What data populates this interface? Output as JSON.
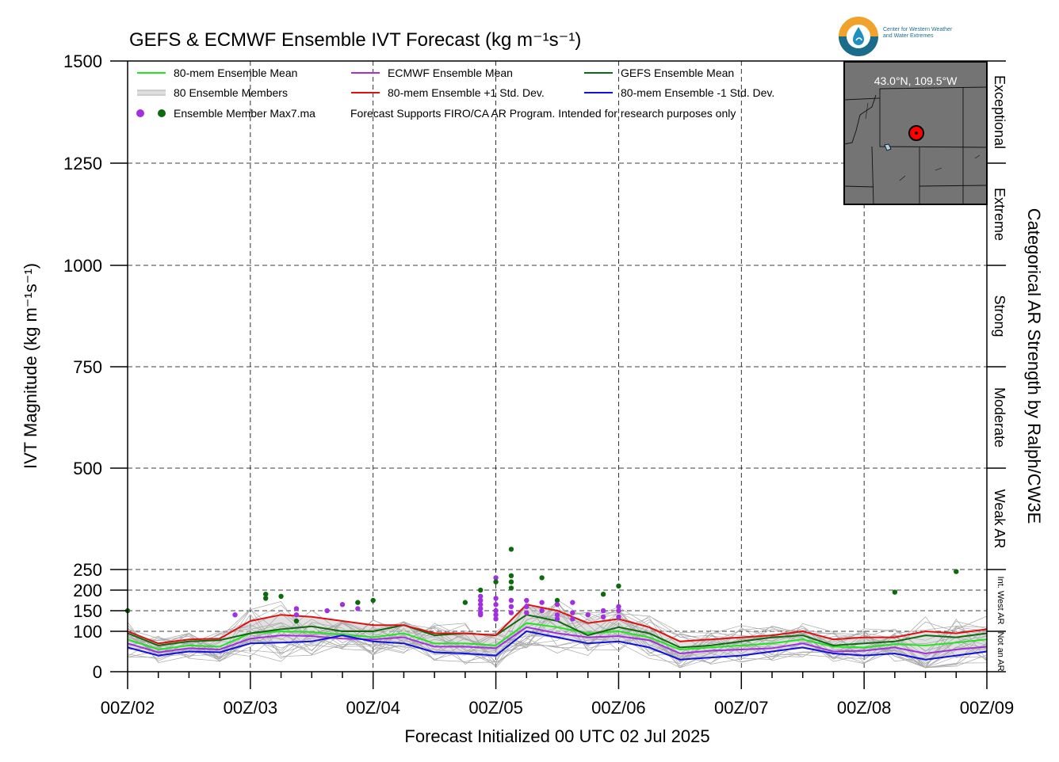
{
  "logo": {
    "line1": "Center for Western Weather",
    "line2": "and Water Extremes"
  },
  "chart_data": {
    "type": "line",
    "title": "GEFS & ECMWF Ensemble IVT Forecast (kg m⁻¹s⁻¹)",
    "ylabel": "IVT Magnitude (kg m⁻¹s⁻¹)",
    "xlabel": "Forecast Initialized 00 UTC 02 Jul 2025",
    "right_label": "Categorical AR Strength by Ralph/CW3E",
    "ylim": [
      0,
      1500
    ],
    "xlim_hours": [
      0,
      168
    ],
    "yticks": [
      0,
      100,
      150,
      200,
      250,
      500,
      750,
      1000,
      1250,
      1500
    ],
    "xtick_labels": [
      "00Z/02",
      "00Z/03",
      "00Z/04",
      "00Z/05",
      "00Z/06",
      "00Z/07",
      "00Z/08",
      "00Z/09"
    ],
    "xtick_hours": [
      0,
      24,
      48,
      72,
      96,
      120,
      144,
      168
    ],
    "grid": true,
    "categories": [
      {
        "label": "Exceptional",
        "from": 1250,
        "to": 1500
      },
      {
        "label": "Extreme",
        "from": 1000,
        "to": 1250
      },
      {
        "label": "Strong",
        "from": 750,
        "to": 1000
      },
      {
        "label": "Moderate",
        "from": 500,
        "to": 750
      },
      {
        "label": "Weak AR",
        "from": 250,
        "to": 500
      },
      {
        "label": "Int. West AR",
        "from": 100,
        "to": 250
      },
      {
        "label": "Not an AR",
        "from": 0,
        "to": 100
      }
    ],
    "legend": [
      {
        "label": "80-mem Ensemble Mean",
        "color": "#22e522",
        "kind": "line"
      },
      {
        "label": "ECMWF Ensemble Mean",
        "color": "#a030e0",
        "kind": "line"
      },
      {
        "label": "GEFS Ensemble Mean",
        "color": "#0d6b0d",
        "kind": "line"
      },
      {
        "label": "80 Ensemble Members",
        "color": "#b0b0b0",
        "kind": "members"
      },
      {
        "label": "80-mem Ensemble +1 Std. Dev.",
        "color": "#e01010",
        "kind": "line"
      },
      {
        "label": "80-mem Ensemble -1 Std. Dev.",
        "color": "#1010e0",
        "kind": "line"
      },
      {
        "label": "Ensemble Member Max7.ma",
        "color": "#a030e0",
        "kind": "dots"
      }
    ],
    "note": "Forecast Supports FIRO/CA AR Program. Intended for research purposes only",
    "inset_label": "43.0°N, 109.5°W",
    "x": [
      0,
      6,
      12,
      18,
      24,
      30,
      36,
      42,
      48,
      54,
      60,
      66,
      72,
      78,
      84,
      90,
      96,
      102,
      108,
      114,
      120,
      126,
      132,
      138,
      144,
      150,
      156,
      162,
      168
    ],
    "series": [
      {
        "name": "80-mem Ensemble Mean",
        "color": "#22e522",
        "values": [
          80,
          55,
          65,
          62,
          95,
          100,
          98,
          92,
          85,
          95,
          70,
          70,
          65,
          120,
          110,
          95,
          100,
          85,
          55,
          60,
          65,
          70,
          80,
          62,
          60,
          68,
          65,
          72,
          80
        ]
      },
      {
        "name": "ECMWF Ensemble Mean",
        "color": "#a030e0",
        "values": [
          70,
          48,
          58,
          55,
          82,
          90,
          88,
          82,
          80,
          85,
          62,
          62,
          58,
          110,
          95,
          85,
          88,
          78,
          45,
          52,
          55,
          58,
          70,
          50,
          52,
          60,
          45,
          55,
          62
        ]
      },
      {
        "name": "GEFS Ensemble Mean",
        "color": "#0d6b0d",
        "values": [
          95,
          65,
          75,
          78,
          95,
          105,
          112,
          100,
          100,
          115,
          90,
          95,
          90,
          140,
          125,
          90,
          110,
          95,
          60,
          65,
          75,
          85,
          90,
          65,
          70,
          75,
          90,
          85,
          95
        ]
      },
      {
        "name": "80-mem Ensemble +1 Std. Dev.",
        "color": "#e01010",
        "values": [
          100,
          70,
          80,
          82,
          125,
          140,
          135,
          125,
          115,
          115,
          95,
          95,
          90,
          165,
          150,
          120,
          130,
          110,
          75,
          80,
          85,
          90,
          100,
          80,
          85,
          85,
          100,
          95,
          105
        ]
      },
      {
        "name": "80-mem Ensemble -1 Std. Dev.",
        "color": "#1010e0",
        "values": [
          60,
          40,
          50,
          48,
          70,
          72,
          75,
          90,
          75,
          70,
          48,
          45,
          40,
          100,
          85,
          70,
          75,
          60,
          30,
          35,
          40,
          50,
          60,
          45,
          40,
          45,
          30,
          40,
          50
        ]
      }
    ],
    "max_points": [
      {
        "x": 0,
        "y": 150,
        "group": "GEFS"
      },
      {
        "x": 21,
        "y": 140,
        "group": "ECMWF"
      },
      {
        "x": 27,
        "y": 190,
        "group": "GEFS"
      },
      {
        "x": 27,
        "y": 180,
        "group": "GEFS"
      },
      {
        "x": 30,
        "y": 185,
        "group": "GEFS"
      },
      {
        "x": 33,
        "y": 155,
        "group": "ECMWF"
      },
      {
        "x": 33,
        "y": 140,
        "group": "ECMWF"
      },
      {
        "x": 33,
        "y": 125,
        "group": "GEFS"
      },
      {
        "x": 39,
        "y": 150,
        "group": "ECMWF"
      },
      {
        "x": 42,
        "y": 165,
        "group": "ECMWF"
      },
      {
        "x": 45,
        "y": 170,
        "group": "GEFS"
      },
      {
        "x": 45,
        "y": 155,
        "group": "ECMWF"
      },
      {
        "x": 48,
        "y": 175,
        "group": "GEFS"
      },
      {
        "x": 66,
        "y": 170,
        "group": "GEFS"
      },
      {
        "x": 69,
        "y": 200,
        "group": "GEFS"
      },
      {
        "x": 69,
        "y": 185,
        "group": "ECMWF"
      },
      {
        "x": 69,
        "y": 175,
        "group": "ECMWF"
      },
      {
        "x": 69,
        "y": 165,
        "group": "ECMWF"
      },
      {
        "x": 69,
        "y": 155,
        "group": "ECMWF"
      },
      {
        "x": 69,
        "y": 145,
        "group": "ECMWF"
      },
      {
        "x": 69,
        "y": 140,
        "group": "ECMWF"
      },
      {
        "x": 72,
        "y": 230,
        "group": "ECMWF"
      },
      {
        "x": 72,
        "y": 220,
        "group": "GEFS"
      },
      {
        "x": 72,
        "y": 180,
        "group": "ECMWF"
      },
      {
        "x": 72,
        "y": 165,
        "group": "ECMWF"
      },
      {
        "x": 72,
        "y": 150,
        "group": "ECMWF"
      },
      {
        "x": 72,
        "y": 140,
        "group": "ECMWF"
      },
      {
        "x": 72,
        "y": 130,
        "group": "ECMWF"
      },
      {
        "x": 75,
        "y": 300,
        "group": "GEFS"
      },
      {
        "x": 75,
        "y": 235,
        "group": "GEFS"
      },
      {
        "x": 75,
        "y": 220,
        "group": "GEFS"
      },
      {
        "x": 75,
        "y": 205,
        "group": "GEFS"
      },
      {
        "x": 75,
        "y": 175,
        "group": "ECMWF"
      },
      {
        "x": 75,
        "y": 160,
        "group": "ECMWF"
      },
      {
        "x": 75,
        "y": 145,
        "group": "ECMWF"
      },
      {
        "x": 78,
        "y": 175,
        "group": "ECMWF"
      },
      {
        "x": 78,
        "y": 160,
        "group": "ECMWF"
      },
      {
        "x": 78,
        "y": 145,
        "group": "ECMWF"
      },
      {
        "x": 81,
        "y": 230,
        "group": "GEFS"
      },
      {
        "x": 81,
        "y": 170,
        "group": "ECMWF"
      },
      {
        "x": 81,
        "y": 150,
        "group": "ECMWF"
      },
      {
        "x": 84,
        "y": 175,
        "group": "GEFS"
      },
      {
        "x": 84,
        "y": 165,
        "group": "ECMWF"
      },
      {
        "x": 84,
        "y": 140,
        "group": "ECMWF"
      },
      {
        "x": 84,
        "y": 130,
        "group": "ECMWF"
      },
      {
        "x": 87,
        "y": 170,
        "group": "ECMWF"
      },
      {
        "x": 87,
        "y": 145,
        "group": "ECMWF"
      },
      {
        "x": 87,
        "y": 130,
        "group": "ECMWF"
      },
      {
        "x": 90,
        "y": 140,
        "group": "ECMWF"
      },
      {
        "x": 93,
        "y": 190,
        "group": "GEFS"
      },
      {
        "x": 93,
        "y": 150,
        "group": "ECMWF"
      },
      {
        "x": 93,
        "y": 135,
        "group": "ECMWF"
      },
      {
        "x": 96,
        "y": 210,
        "group": "GEFS"
      },
      {
        "x": 96,
        "y": 160,
        "group": "ECMWF"
      },
      {
        "x": 96,
        "y": 150,
        "group": "ECMWF"
      },
      {
        "x": 96,
        "y": 135,
        "group": "ECMWF"
      },
      {
        "x": 150,
        "y": 195,
        "group": "GEFS"
      },
      {
        "x": 162,
        "y": 245,
        "group": "GEFS"
      }
    ]
  }
}
